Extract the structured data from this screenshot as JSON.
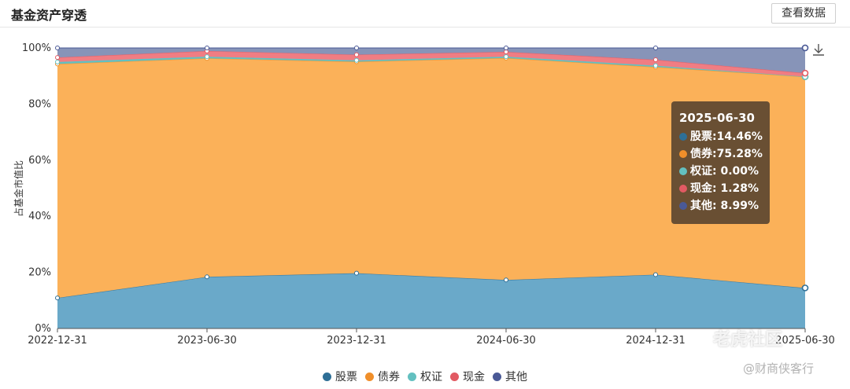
{
  "header": {
    "title": "基金资产穿透",
    "view_data_button": "查看数据"
  },
  "tooltip": {
    "date": "2025-06-30",
    "rows": [
      {
        "label": "股票:",
        "value": "14.46%",
        "color": "#2e6f96"
      },
      {
        "label": "债券:",
        "value": "75.28%",
        "color": "#f08f2a"
      },
      {
        "label": "权证:",
        "value": "0.00%",
        "color": "#63c0c0"
      },
      {
        "label": "现金:",
        "value": "1.28%",
        "color": "#e25a63"
      },
      {
        "label": "其他:",
        "value": "8.99%",
        "color": "#4a5996"
      }
    ]
  },
  "chart_data": {
    "type": "area",
    "stacked": true,
    "title": "基金资产穿透",
    "ylabel": "占基金市值比",
    "xlabel": "",
    "x": [
      "2022-12-31",
      "2023-06-30",
      "2023-12-31",
      "2024-06-30",
      "2024-12-31",
      "2025-06-30"
    ],
    "ylim": [
      0,
      100
    ],
    "yticks": [
      "0%",
      "20%",
      "40%",
      "60%",
      "80%",
      "100%"
    ],
    "legend_position": "bottom-center",
    "series": [
      {
        "name": "股票",
        "color": "#6aa9c9",
        "values": [
          10.9,
          18.4,
          19.7,
          17.3,
          19.2,
          14.46
        ]
      },
      {
        "name": "债券",
        "color": "#fbb159",
        "values": [
          83.4,
          77.9,
          75.4,
          79.1,
          74.0,
          75.28
        ]
      },
      {
        "name": "权证",
        "color": "#63c0c0",
        "values": [
          0.7,
          0.6,
          0.5,
          0.5,
          0.5,
          0.0
        ]
      },
      {
        "name": "现金",
        "color": "#f07d83",
        "values": [
          1.6,
          2.0,
          2.0,
          1.7,
          2.1,
          1.28
        ]
      },
      {
        "name": "其他",
        "color": "#8794b8",
        "values": [
          3.4,
          1.1,
          2.4,
          1.4,
          4.2,
          8.99
        ]
      }
    ]
  },
  "legend": [
    {
      "name": "股票",
      "color": "#2e6f96"
    },
    {
      "name": "债券",
      "color": "#f08f2a"
    },
    {
      "name": "权证",
      "color": "#63c0c0"
    },
    {
      "name": "现金",
      "color": "#e25a63"
    },
    {
      "name": "其他",
      "color": "#4a5996"
    }
  ],
  "watermarks": {
    "logo_text": "老虎社区",
    "account_text": "@财商侠客行"
  }
}
